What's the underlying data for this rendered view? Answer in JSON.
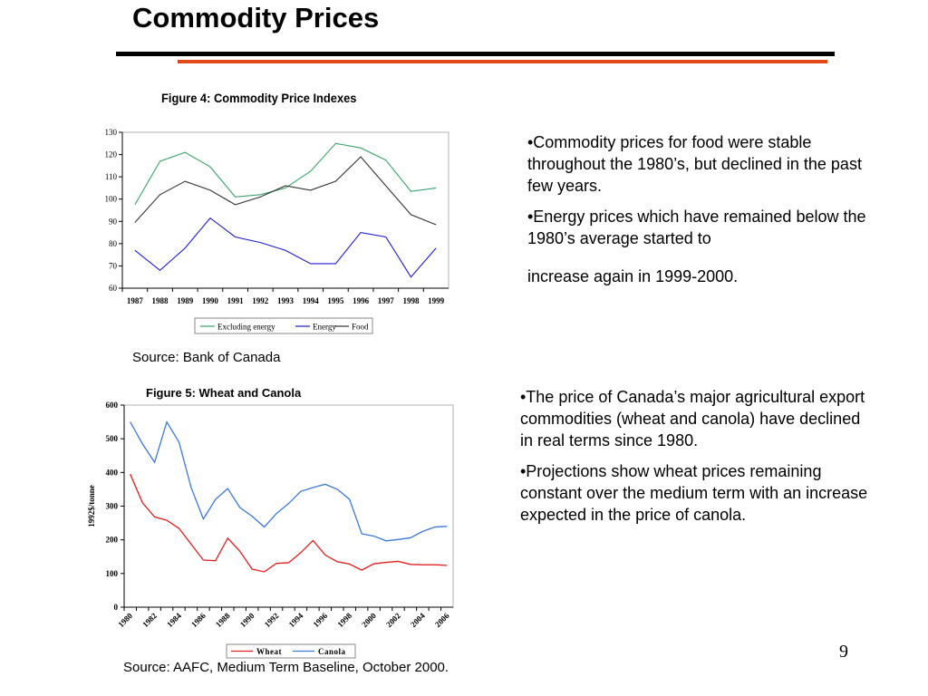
{
  "slide": {
    "title": "Commodity Prices",
    "page_number": "9",
    "source1": "Source: Bank of Canada",
    "source2": "Source: AAFC, Medium Term Baseline, October 2000.",
    "bullets_top": [
      "•Commodity prices for food were stable throughout the 1980’s, but  declined in the past few years.",
      "•Energy prices which have remained below the 1980’s average started to",
      "increase again in 1999-2000."
    ],
    "bullets_bottom": [
      "•The price of Canada’s major agricultural export commodities (wheat and canola) have  declined in real terms since 1980.",
      "•Projections  show wheat prices remaining constant over the medium term with an increase expected in the price of canola."
    ],
    "colors": {
      "title_rule": "#000000",
      "accent_rule": "#e0481a"
    }
  },
  "chart_data": [
    {
      "type": "line",
      "title": "Figure 4: Commodity Price Indexes",
      "xlabel": "",
      "ylabel": "",
      "categories": [
        "1987",
        "1988",
        "1989",
        "1990",
        "1991",
        "1992",
        "1993",
        "1994",
        "1995",
        "1996",
        "1997",
        "1998",
        "1999"
      ],
      "ylim": [
        60,
        130
      ],
      "yticks": [
        "60",
        "70",
        "80",
        "90",
        "100",
        "110",
        "120",
        "130"
      ],
      "grid": false,
      "legend": "bottom",
      "series": [
        {
          "name": "Excluding energy",
          "color": "#3aa36a",
          "values": [
            97.5,
            117,
            121,
            114.5,
            101,
            102,
            105,
            112.5,
            125,
            123,
            117.5,
            103.5,
            105
          ]
        },
        {
          "name": "Energy",
          "color": "#1c1ccf",
          "values": [
            77,
            68,
            78,
            91.5,
            83,
            80.5,
            77,
            71,
            71,
            85,
            83,
            65,
            78
          ]
        },
        {
          "name": "Food",
          "color": "#333333",
          "values": [
            89.5,
            102,
            108,
            104,
            97.5,
            101,
            106,
            104,
            108,
            119,
            106,
            93,
            88.5
          ]
        }
      ]
    },
    {
      "type": "line",
      "title": "Figure 5: Wheat and Canola",
      "xlabel": "",
      "ylabel": "1992$/tonne",
      "x": [
        1980,
        1981,
        1982,
        1983,
        1984,
        1985,
        1986,
        1987,
        1988,
        1989,
        1990,
        1991,
        1992,
        1993,
        1994,
        1995,
        1996,
        1997,
        1998,
        1999,
        2000,
        2001,
        2002,
        2003,
        2004,
        2005,
        2006
      ],
      "xticks": [
        "1980",
        "1982",
        "1984",
        "1986",
        "1988",
        "1990",
        "1992",
        "1994",
        "1996",
        "1998",
        "2000",
        "2002",
        "2004",
        "2006"
      ],
      "ylim": [
        0,
        600
      ],
      "yticks": [
        "0",
        "100",
        "200",
        "300",
        "400",
        "500",
        "600"
      ],
      "grid": false,
      "legend": "bottom",
      "series": [
        {
          "name": "Wheat",
          "color": "#e02020",
          "values": [
            395,
            310,
            268,
            258,
            234,
            187,
            140,
            138,
            205,
            166,
            113,
            105,
            130,
            132,
            162,
            198,
            155,
            135,
            128,
            110,
            129,
            133,
            136,
            127,
            126,
            126,
            124
          ]
        },
        {
          "name": "Canola",
          "color": "#3c78d8",
          "values": [
            550,
            485,
            430,
            550,
            490,
            355,
            262,
            320,
            352,
            296,
            270,
            238,
            278,
            308,
            344,
            355,
            365,
            350,
            320,
            218,
            211,
            197,
            201,
            206,
            225,
            238,
            240
          ]
        }
      ]
    }
  ]
}
